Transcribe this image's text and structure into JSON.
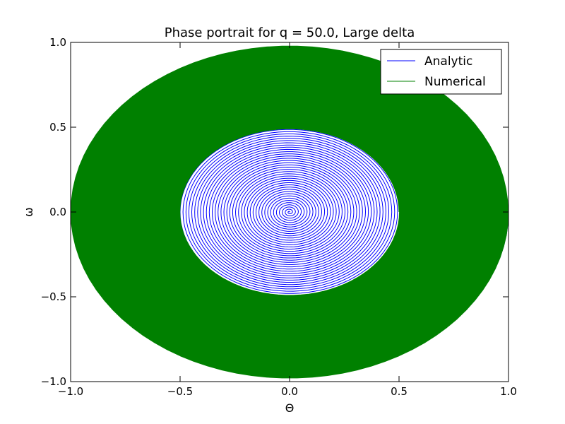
{
  "chart_data": {
    "type": "line",
    "title": "Phase portrait for q = 50.0, Large delta",
    "xlabel": "Θ",
    "ylabel": "ω",
    "xlim": [
      -1.0,
      1.0
    ],
    "ylim": [
      -1.0,
      1.0
    ],
    "xticks": [
      "−1.0",
      "−0.5",
      "0.0",
      "0.5",
      "1.0"
    ],
    "yticks": [
      "−1.0",
      "−0.5",
      "0.0",
      "0.5",
      "1.0"
    ],
    "grid": false,
    "legend_position": "top-right",
    "series": [
      {
        "name": "Analytic",
        "color": "#0000ff",
        "shape": "decaying spiral",
        "theta_amplitude": [
          1.0,
          0.0
        ],
        "omega_amplitude": [
          0.98,
          0.0
        ],
        "turns": 75
      },
      {
        "name": "Numerical",
        "color": "#008000",
        "shape": "decaying spiral",
        "theta_amplitude": [
          1.0,
          0.5
        ],
        "omega_amplitude": [
          0.98,
          0.49
        ],
        "turns": 260
      }
    ]
  }
}
